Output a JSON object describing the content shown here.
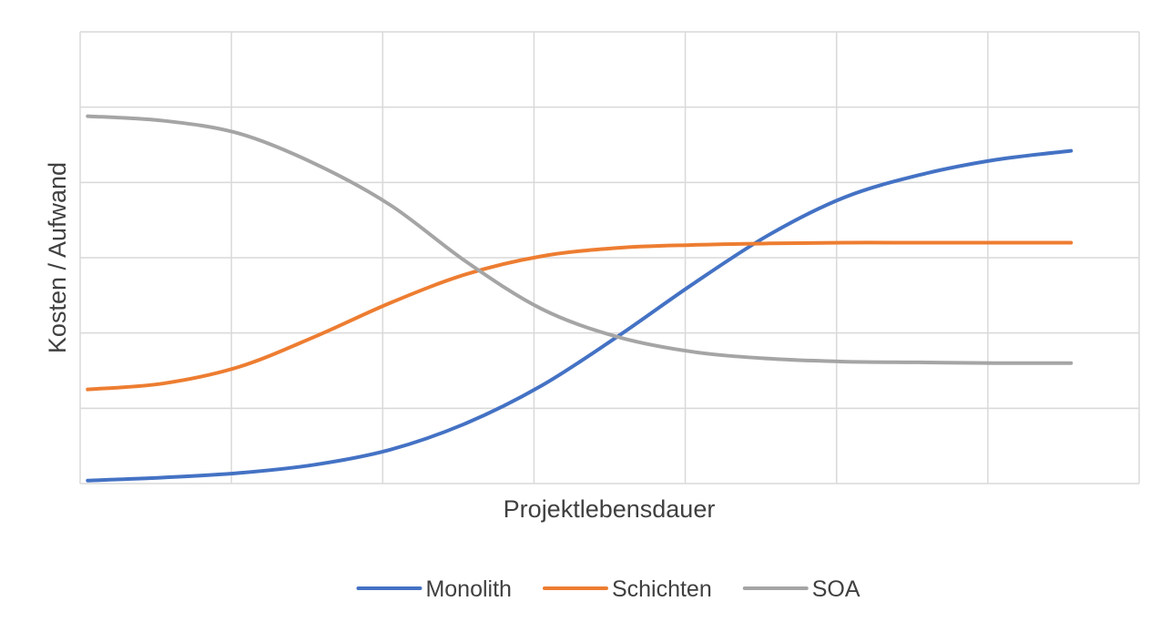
{
  "chart_data": {
    "type": "line",
    "title": "",
    "xlabel": "Projektlebensdauer",
    "ylabel": "Kosten / Aufwand",
    "x": [
      0,
      0.5,
      1,
      1.5,
      2,
      2.5,
      3,
      3.5,
      4,
      4.5,
      5,
      5.5,
      6,
      6.5
    ],
    "xlim": [
      0,
      7
    ],
    "ylim": [
      0,
      6
    ],
    "grid": true,
    "legend": "bottom",
    "series": [
      {
        "name": "Monolith",
        "color": "#4472C4",
        "values": [
          0.04,
          0.08,
          0.14,
          0.25,
          0.45,
          0.8,
          1.3,
          1.95,
          2.65,
          3.3,
          3.8,
          4.1,
          4.3,
          4.42
        ]
      },
      {
        "name": "Schichten",
        "color": "#ED7D31",
        "values": [
          1.25,
          1.33,
          1.55,
          1.95,
          2.4,
          2.78,
          3.02,
          3.13,
          3.17,
          3.19,
          3.2,
          3.2,
          3.2,
          3.2
        ]
      },
      {
        "name": "SOA",
        "color": "#A5A5A5",
        "values": [
          4.88,
          4.82,
          4.65,
          4.25,
          3.7,
          2.95,
          2.32,
          1.95,
          1.75,
          1.66,
          1.62,
          1.61,
          1.6,
          1.6
        ]
      }
    ]
  }
}
